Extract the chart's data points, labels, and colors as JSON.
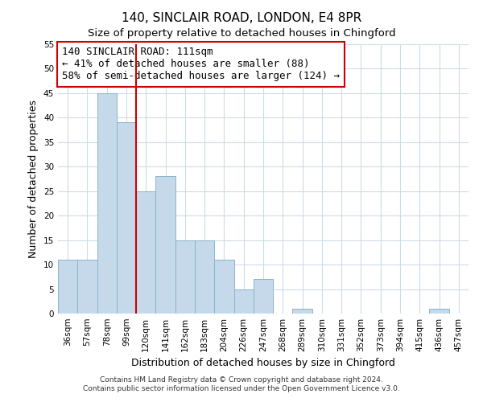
{
  "title": "140, SINCLAIR ROAD, LONDON, E4 8PR",
  "subtitle": "Size of property relative to detached houses in Chingford",
  "xlabel": "Distribution of detached houses by size in Chingford",
  "ylabel": "Number of detached properties",
  "bin_labels": [
    "36sqm",
    "57sqm",
    "78sqm",
    "99sqm",
    "120sqm",
    "141sqm",
    "162sqm",
    "183sqm",
    "204sqm",
    "226sqm",
    "247sqm",
    "268sqm",
    "289sqm",
    "310sqm",
    "331sqm",
    "352sqm",
    "373sqm",
    "394sqm",
    "415sqm",
    "436sqm",
    "457sqm"
  ],
  "bar_heights": [
    11,
    11,
    45,
    39,
    25,
    28,
    15,
    15,
    11,
    5,
    7,
    0,
    1,
    0,
    0,
    0,
    0,
    0,
    0,
    1,
    0
  ],
  "bar_color": "#c5d9ea",
  "bar_edge_color": "#8ab4cc",
  "vline_x": 3.5,
  "vline_color": "#cc0000",
  "annotation_text_line1": "140 SINCLAIR ROAD: 111sqm",
  "annotation_text_line2": "← 41% of detached houses are smaller (88)",
  "annotation_text_line3": "58% of semi-detached houses are larger (124) →",
  "annotation_box_edge_color": "#cc0000",
  "ylim": [
    0,
    55
  ],
  "yticks": [
    0,
    5,
    10,
    15,
    20,
    25,
    30,
    35,
    40,
    45,
    50,
    55
  ],
  "footer_line1": "Contains HM Land Registry data © Crown copyright and database right 2024.",
  "footer_line2": "Contains public sector information licensed under the Open Government Licence v3.0.",
  "background_color": "#ffffff",
  "grid_color": "#cddce8",
  "title_fontsize": 11,
  "subtitle_fontsize": 9.5,
  "axis_label_fontsize": 9,
  "tick_fontsize": 7.5,
  "footer_fontsize": 6.5,
  "annotation_fontsize": 9
}
